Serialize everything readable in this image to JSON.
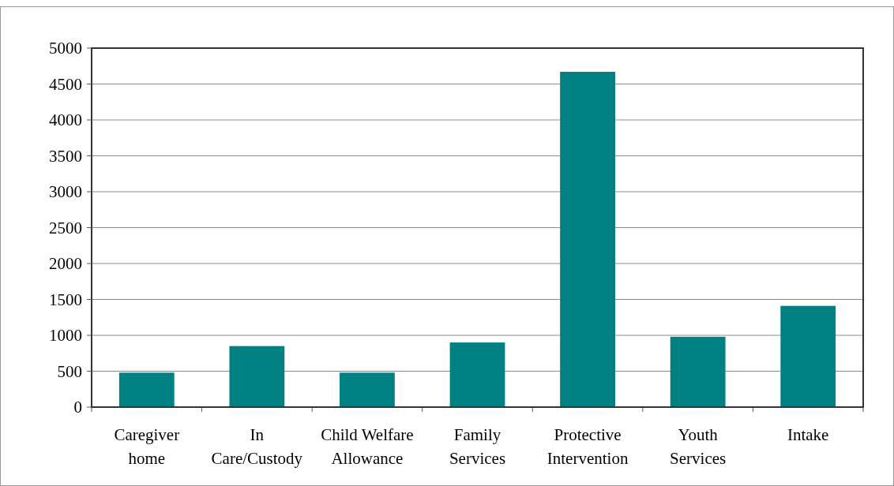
{
  "chart_data": {
    "type": "bar",
    "categories": [
      "Caregiver home",
      "In Care/Custody",
      "Child Welfare Allowance",
      "Family Services",
      "Protective Intervention",
      "Youth Services",
      "Intake"
    ],
    "values": [
      480,
      850,
      480,
      900,
      4670,
      980,
      1410
    ],
    "color": "#008080",
    "ylim": [
      0,
      5000
    ],
    "yticks": [
      0,
      500,
      1000,
      1500,
      2000,
      2500,
      3000,
      3500,
      4000,
      4500,
      5000
    ],
    "grid": "y"
  }
}
